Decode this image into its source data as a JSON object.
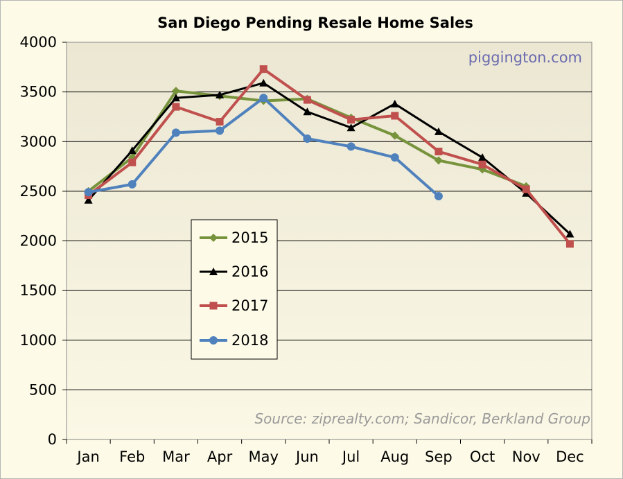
{
  "chart_data": {
    "type": "line",
    "title": "San Diego Pending Resale Home Sales",
    "xlabel": "",
    "ylabel": "",
    "categories": [
      "Jan",
      "Feb",
      "Mar",
      "Apr",
      "May",
      "Jun",
      "Jul",
      "Aug",
      "Sep",
      "Oct",
      "Nov",
      "Dec"
    ],
    "ylim": [
      0,
      4000
    ],
    "yticks": [
      0,
      500,
      1000,
      1500,
      2000,
      2500,
      3000,
      3500,
      4000
    ],
    "grid": "horizontal",
    "legend_position": "center-left",
    "watermark": "piggington.com",
    "source_note": "Source: ziprealty.com; Sandicor, Berkland Group",
    "series": [
      {
        "name": "2015",
        "color": "#77933c",
        "marker": "diamond",
        "values": [
          2500,
          2840,
          3510,
          3460,
          3410,
          3430,
          3240,
          3060,
          2810,
          2720,
          2550,
          null
        ]
      },
      {
        "name": "2016",
        "color": "#000000",
        "marker": "triangle",
        "values": [
          2410,
          2910,
          3440,
          3470,
          3590,
          3300,
          3140,
          3380,
          3100,
          2840,
          2480,
          2070
        ]
      },
      {
        "name": "2017",
        "color": "#c0504d",
        "marker": "square",
        "values": [
          2460,
          2790,
          3350,
          3200,
          3730,
          3420,
          3220,
          3260,
          2900,
          2770,
          2520,
          1970
        ]
      },
      {
        "name": "2018",
        "color": "#4f81bd",
        "marker": "circle",
        "values": [
          2490,
          2570,
          3090,
          3110,
          3440,
          3030,
          2950,
          2840,
          2450,
          null,
          null,
          null
        ]
      }
    ]
  }
}
